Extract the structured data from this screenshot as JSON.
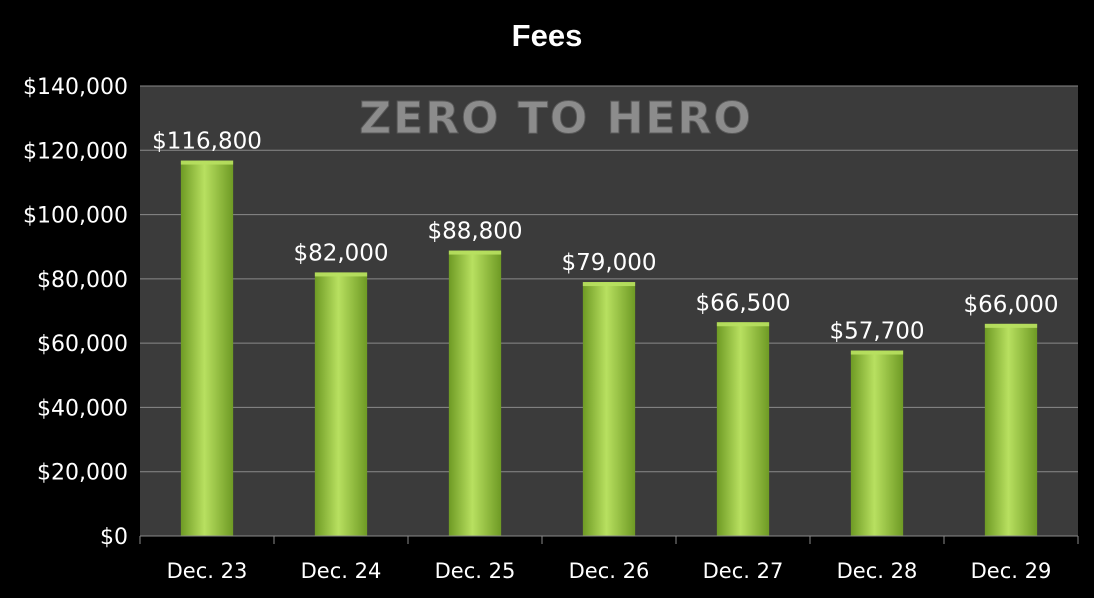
{
  "chart_data": {
    "type": "bar",
    "title": "Fees",
    "watermark": "ZERO TO HERO",
    "xlabel": "",
    "ylabel": "",
    "categories": [
      "Dec. 23",
      "Dec. 24",
      "Dec. 25",
      "Dec. 26",
      "Dec. 27",
      "Dec. 28",
      "Dec. 29"
    ],
    "values": [
      116800,
      82000,
      88800,
      79000,
      66500,
      57700,
      66000
    ],
    "data_labels": [
      "$116,800",
      "$82,000",
      "$88,800",
      "$79,000",
      "$66,500",
      "$57,700",
      "$66,000"
    ],
    "ylim": [
      0,
      140000
    ],
    "yticks": [
      0,
      20000,
      40000,
      60000,
      80000,
      100000,
      120000,
      140000
    ],
    "ytick_labels": [
      "$0",
      "$20,000",
      "$40,000",
      "$60,000",
      "$80,000",
      "$100,000",
      "$120,000",
      "$140,000"
    ],
    "grid": true,
    "legend": "none",
    "colors": {
      "background": "#000000",
      "plot_area": "#3b3b3b",
      "bar": "#9acd3c",
      "bar_light": "#b8e060",
      "bar_dark": "#6e9a24",
      "gridline": "#8a8a8a",
      "text": "#ffffff",
      "watermark": "#8c8c8c"
    }
  }
}
